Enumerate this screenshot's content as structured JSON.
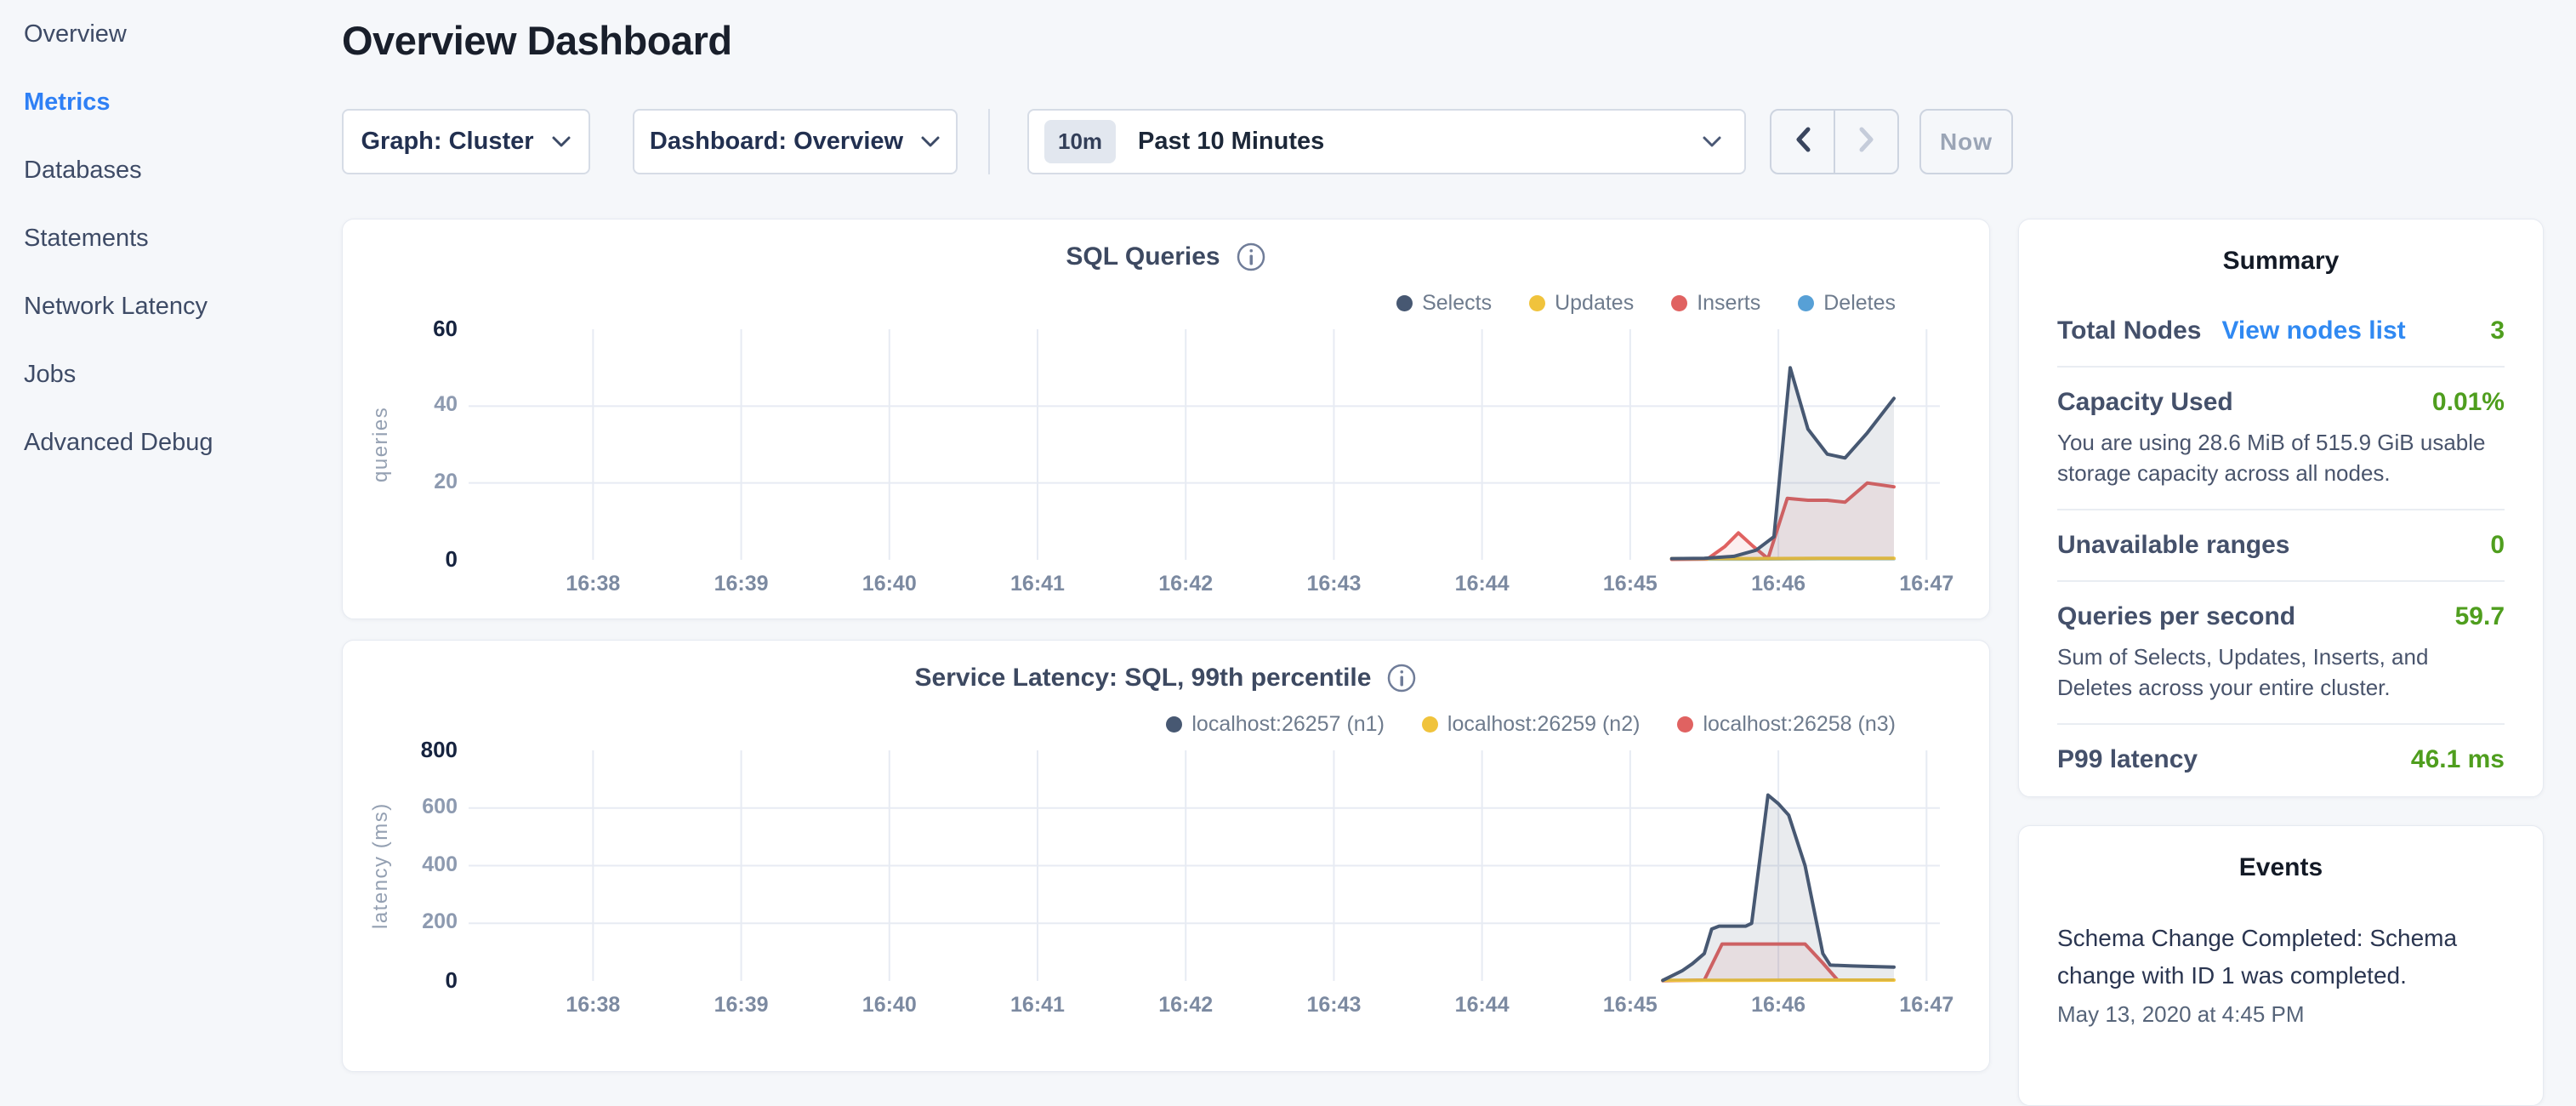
{
  "sidebar": {
    "items": [
      {
        "label": "Overview",
        "active": false
      },
      {
        "label": "Metrics",
        "active": true
      },
      {
        "label": "Databases",
        "active": false
      },
      {
        "label": "Statements",
        "active": false
      },
      {
        "label": "Network Latency",
        "active": false
      },
      {
        "label": "Jobs",
        "active": false
      },
      {
        "label": "Advanced Debug",
        "active": false
      }
    ]
  },
  "page": {
    "title": "Overview Dashboard"
  },
  "controls": {
    "graph_label": "Graph: Cluster",
    "dashboard_label": "Dashboard: Overview"
  },
  "time": {
    "badge": "10m",
    "range_label": "Past 10 Minutes",
    "now_label": "Now"
  },
  "summary": {
    "title": "Summary",
    "rows": [
      {
        "label": "Total Nodes",
        "link": "View nodes list",
        "value": "3"
      },
      {
        "label": "Capacity Used",
        "value": "0.01%",
        "description": "You are using 28.6 MiB of 515.9 GiB usable storage capacity across all nodes."
      },
      {
        "label": "Unavailable ranges",
        "value": "0"
      },
      {
        "label": "Queries per second",
        "value": "59.7",
        "description": "Sum of Selects, Updates, Inserts, and Deletes across your entire cluster."
      },
      {
        "label": "P99 latency",
        "value": "46.1 ms"
      }
    ]
  },
  "events": {
    "title": "Events",
    "items": [
      {
        "message": "Schema Change Completed: Schema change with ID 1 was completed.",
        "timestamp": "May 13, 2020 at 4:45 PM"
      }
    ]
  },
  "colors": {
    "accent_blue": "#2f80f5",
    "link_blue": "#3089f2",
    "value_green": "#4f9e1e",
    "series_navy": "#475872",
    "series_yellow": "#f0c33c",
    "series_red": "#e06261",
    "series_blue": "#57a0d6",
    "gridline": "#e7ebf3"
  },
  "chart_data": [
    {
      "type": "line",
      "title": "SQL Queries",
      "ylabel": "queries",
      "legend_position": "top-right",
      "grid": true,
      "x_axis": {
        "range": [
          37.16,
          47.09
        ],
        "ticks": [
          38,
          39,
          40,
          41,
          42,
          43,
          44,
          45,
          46,
          47
        ],
        "tick_labels": [
          "16:38",
          "16:39",
          "16:40",
          "16:41",
          "16:42",
          "16:43",
          "16:44",
          "16:45",
          "16:46",
          "16:47"
        ]
      },
      "y_axis": {
        "range": [
          0,
          60
        ],
        "ticks": [
          0,
          20,
          40,
          60
        ],
        "gridlines": [
          20,
          40
        ]
      },
      "series": [
        {
          "name": "Selects",
          "color": "#475872",
          "fill": "rgba(71,88,114,0.12)",
          "points": [
            [
              45.28,
              0.3
            ],
            [
              45.5,
              0.4
            ],
            [
              45.7,
              0.9
            ],
            [
              45.85,
              2.5
            ],
            [
              45.97,
              6
            ],
            [
              46.08,
              50
            ],
            [
              46.2,
              34
            ],
            [
              46.33,
              27.5
            ],
            [
              46.45,
              26.5
            ],
            [
              46.6,
              33
            ],
            [
              46.78,
              42
            ]
          ]
        },
        {
          "name": "Updates",
          "color": "#f0c33c",
          "fill": "rgba(240,195,60,0.10)",
          "points": [
            [
              45.28,
              0.3
            ],
            [
              45.8,
              0.3
            ],
            [
              46.3,
              0.4
            ],
            [
              46.78,
              0.4
            ]
          ]
        },
        {
          "name": "Inserts",
          "color": "#e06261",
          "fill": "rgba(224,98,97,0.10)",
          "points": [
            [
              45.28,
              0.1
            ],
            [
              45.52,
              0.2
            ],
            [
              45.64,
              3.5
            ],
            [
              45.73,
              7
            ],
            [
              45.83,
              3.5
            ],
            [
              45.93,
              0.3
            ],
            [
              46.06,
              16
            ],
            [
              46.2,
              15.5
            ],
            [
              46.33,
              15.5
            ],
            [
              46.45,
              15
            ],
            [
              46.6,
              20
            ],
            [
              46.78,
              19
            ]
          ]
        },
        {
          "name": "Deletes",
          "color": "#57a0d6",
          "fill": "rgba(87,160,214,0.10)",
          "points": [
            [
              45.28,
              0.2
            ],
            [
              45.8,
              0.2
            ],
            [
              46.3,
              0.3
            ],
            [
              46.78,
              0.3
            ]
          ]
        }
      ]
    },
    {
      "type": "line",
      "title": "Service Latency: SQL, 99th percentile",
      "ylabel": "latency (ms)",
      "legend_position": "top-right",
      "grid": true,
      "x_axis": {
        "range": [
          37.16,
          47.09
        ],
        "ticks": [
          38,
          39,
          40,
          41,
          42,
          43,
          44,
          45,
          46,
          47
        ],
        "tick_labels": [
          "16:38",
          "16:39",
          "16:40",
          "16:41",
          "16:42",
          "16:43",
          "16:44",
          "16:45",
          "16:46",
          "16:47"
        ]
      },
      "y_axis": {
        "range": [
          0,
          800
        ],
        "ticks": [
          0,
          200,
          400,
          600,
          800
        ],
        "gridlines": [
          200,
          400,
          600
        ]
      },
      "series": [
        {
          "name": "localhost:26257 (n1)",
          "color": "#475872",
          "fill": "rgba(71,88,114,0.12)",
          "points": [
            [
              45.22,
              2
            ],
            [
              45.35,
              35
            ],
            [
              45.42,
              60
            ],
            [
              45.5,
              95
            ],
            [
              45.55,
              180
            ],
            [
              45.6,
              190
            ],
            [
              45.78,
              190
            ],
            [
              45.82,
              200
            ],
            [
              45.93,
              645
            ],
            [
              46.0,
              615
            ],
            [
              46.07,
              575
            ],
            [
              46.18,
              400
            ],
            [
              46.3,
              95
            ],
            [
              46.35,
              55
            ],
            [
              46.5,
              52
            ],
            [
              46.65,
              50
            ],
            [
              46.78,
              48
            ]
          ]
        },
        {
          "name": "localhost:26259 (n2)",
          "color": "#f0c33c",
          "fill": "rgba(240,195,60,0.10)",
          "points": [
            [
              45.22,
              2
            ],
            [
              45.7,
              2
            ],
            [
              46.2,
              3
            ],
            [
              46.78,
              3
            ]
          ]
        },
        {
          "name": "localhost:26258 (n3)",
          "color": "#e06261",
          "fill": "rgba(224,98,97,0.10)",
          "points": [
            [
              45.22,
              1
            ],
            [
              45.5,
              3
            ],
            [
              45.62,
              128
            ],
            [
              45.8,
              128
            ],
            [
              46.18,
              128
            ],
            [
              46.3,
              62
            ],
            [
              46.4,
              3
            ],
            [
              46.6,
              3
            ],
            [
              46.72,
              3
            ]
          ]
        }
      ]
    }
  ]
}
